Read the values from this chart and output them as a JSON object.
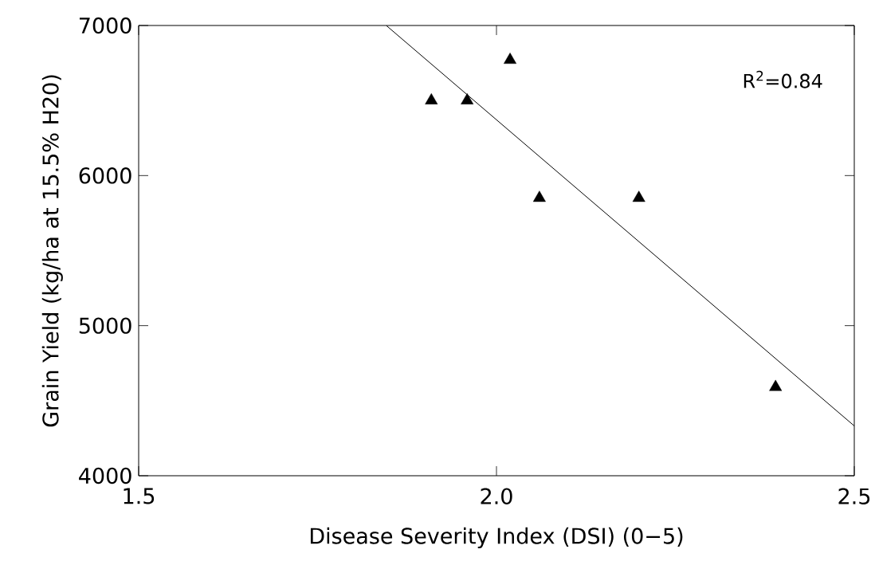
{
  "chart_data": {
    "type": "scatter",
    "xlabel": "Disease Severity Index (DSI) (0−5)",
    "ylabel": "Grain Yield (kg/ha at 15.5% H20)",
    "xlim": [
      1.5,
      2.5
    ],
    "ylim": [
      4000,
      7000
    ],
    "xticks": [
      1.5,
      {
        "value": 2,
        "label": "2.0"
      },
      2.5
    ],
    "yticks": [
      4000,
      5000,
      6000,
      7000
    ],
    "series": [
      {
        "color": "#000000",
        "marker": "triangle",
        "x": [
          1.909,
          1.959,
          2.019,
          2.06,
          2.199,
          2.39
        ],
        "values": [
          6500,
          6500,
          6770,
          5850,
          5850,
          4590
        ]
      },
      {
        "type": "line",
        "color": "#000000",
        "marker": "none",
        "line_style": "solid",
        "x": [
          1.846,
          2.5
        ],
        "values": [
          7000,
          4332
        ]
      }
    ],
    "annotations": [
      "R$^{2}$=0.84"
    ],
    "grid": false
  }
}
